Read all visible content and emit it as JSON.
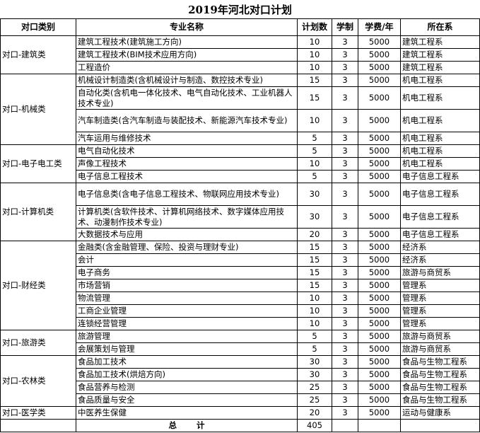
{
  "title": "2019年河北对口计划",
  "headers": [
    "对口类别",
    "专业名称",
    "计划数",
    "学制",
    "学费/年",
    "所在系"
  ],
  "groups": [
    {
      "category": "对口-建筑类",
      "rows": [
        [
          "建筑工程技术(建筑施工方向)",
          "10",
          "3",
          "5000",
          "建筑工程系"
        ],
        [
          "建筑工程技术(BIM技术应用方向)",
          "10",
          "3",
          "5000",
          "建筑工程系"
        ],
        [
          "工程造价",
          "10",
          "3",
          "5000",
          "建筑工程系"
        ]
      ]
    },
    {
      "category": "对口-机械类",
      "rows": [
        [
          "机械设计制造类(含机械设计与制造、数控技术专业)",
          "15",
          "3",
          "5000",
          "机电工程系"
        ],
        [
          "自动化类(含机电一体化技术、电气自动化技术、工业机器人技术专业)",
          "15",
          "3",
          "5000",
          "机电工程系"
        ],
        [
          "汽车制造类(含汽车制造与装配技术、新能源汽车技术专业)",
          "10",
          "3",
          "5000",
          "机电工程系"
        ],
        [
          "汽车运用与维修技术",
          "5",
          "3",
          "5000",
          "机电工程系"
        ]
      ]
    },
    {
      "category": "对口-电子电工类",
      "rows": [
        [
          "电气自动化技术",
          "5",
          "3",
          "5000",
          "机电工程系"
        ],
        [
          "声像工程技术",
          "10",
          "3",
          "5000",
          "机电工程系"
        ],
        [
          "电子信息工程技术",
          "5",
          "3",
          "5000",
          "电子信息工程系"
        ]
      ]
    },
    {
      "category": "对口-计算机类",
      "rows": [
        [
          "电子信息类(含电子信息工程技术、物联网应用技术专业)",
          "30",
          "3",
          "5000",
          "电子信息工程系"
        ],
        [
          "计算机类(含软件技术、计算机网络技术、数字媒体应用技术、动漫制作技术专业)",
          "30",
          "3",
          "5000",
          "电子信息工程系"
        ],
        [
          "大数据技术与应用",
          "20",
          "3",
          "5000",
          "电子信息工程系"
        ]
      ]
    },
    {
      "category": "对口-财经类",
      "rows": [
        [
          "金融类(含金融管理、保险、投资与理财专业)",
          "15",
          "3",
          "5000",
          "经济系"
        ],
        [
          "会计",
          "15",
          "3",
          "5000",
          "经济系"
        ],
        [
          "电子商务",
          "15",
          "3",
          "5000",
          "旅游与商贸系"
        ],
        [
          "市场营销",
          "15",
          "3",
          "5000",
          "管理系"
        ],
        [
          "物流管理",
          "10",
          "3",
          "5000",
          "管理系"
        ],
        [
          "工商企业管理",
          "10",
          "3",
          "5000",
          "管理系"
        ],
        [
          "连锁经营管理",
          "10",
          "3",
          "5000",
          "管理系"
        ]
      ]
    },
    {
      "category": "对口-旅游类",
      "rows": [
        [
          "旅游管理",
          "5",
          "3",
          "5000",
          "旅游与商贸系"
        ],
        [
          "会展策划与管理",
          "5",
          "3",
          "5000",
          "旅游与商贸系"
        ]
      ]
    },
    {
      "category": "对口-农林类",
      "rows": [
        [
          "食品加工技术",
          "30",
          "3",
          "5000",
          "食品与生物工程系"
        ],
        [
          "食品加工技术(烘焙方向)",
          "30",
          "3",
          "5000",
          "食品与生物工程系"
        ],
        [
          "食品营养与检测",
          "25",
          "3",
          "5000",
          "食品与生物工程系"
        ],
        [
          "食品质量与安全",
          "25",
          "3",
          "5000",
          "食品与生物工程系"
        ]
      ]
    },
    {
      "category": "对口-医学类",
      "rows": [
        [
          "中医养生保健",
          "20",
          "3",
          "5000",
          "运动与健康系"
        ]
      ]
    }
  ],
  "total": {
    "label_1": "总",
    "label_2": "计",
    "value": "405"
  }
}
